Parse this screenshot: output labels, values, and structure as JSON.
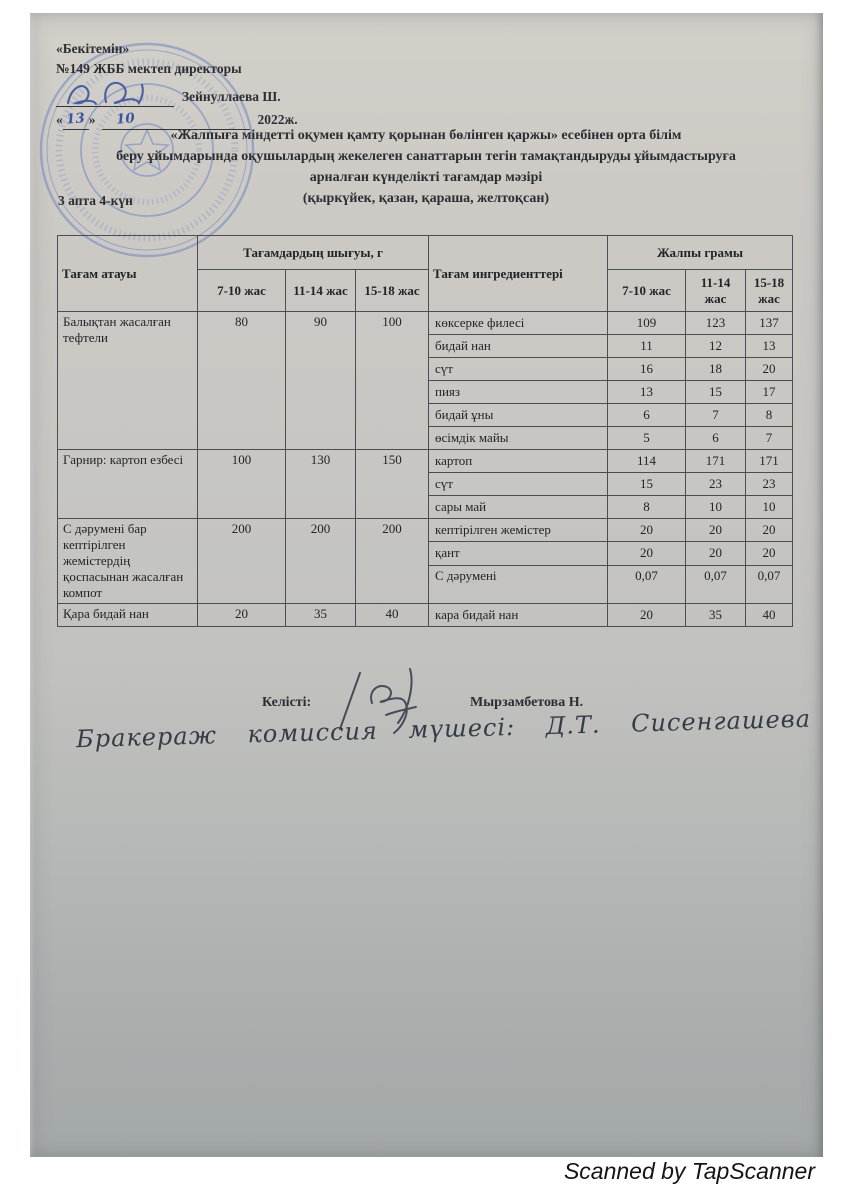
{
  "approval": {
    "line1": "«Бекітемін»",
    "line2": "№149 ЖББ мектеп директоры",
    "director": "Зейнуллаева Ш.",
    "quote_open": "«",
    "quote_close": "»",
    "date_day": "13",
    "date_month": "10",
    "date_year": "2022ж."
  },
  "title": {
    "lines": [
      "«Жалпыға міндетті оқумен қамту қорынан бөлінген қаржы» есебінен орта білім",
      "беру ұйымдарында оқушылардың жекелеген санаттарын тегін тамақтандыруды ұйымдастыруға",
      "арналған күнделікті тағамдар мәзірі",
      "(қыркүйек, қазан, қараша, желтоқсан)"
    ],
    "week_day": "3 апта 4-күн"
  },
  "table": {
    "headers": {
      "dish": "Тағам атауы",
      "output": "Тағамдардың шығуы, г",
      "ingredients": "Тағам ингредиенттері",
      "total": "Жалпы грамы",
      "age_groups": [
        "7-10 жас",
        "11-14 жас",
        "15-18 жас"
      ]
    },
    "groups": [
      {
        "dish": "Балықтан жасалған тефтели",
        "output": [
          "80",
          "90",
          "100"
        ],
        "ingredients": [
          {
            "name": "көксерке филесі",
            "grams": [
              "109",
              "123",
              "137"
            ]
          },
          {
            "name": "бидай нан",
            "grams": [
              "11",
              "12",
              "13"
            ]
          },
          {
            "name": "сүт",
            "grams": [
              "16",
              "18",
              "20"
            ]
          },
          {
            "name": "пияз",
            "grams": [
              "13",
              "15",
              "17"
            ]
          },
          {
            "name": "бидай ұны",
            "grams": [
              "6",
              "7",
              "8"
            ]
          },
          {
            "name": "өсімдік майы",
            "grams": [
              "5",
              "6",
              "7"
            ]
          }
        ]
      },
      {
        "dish": "Гарнир: картоп езбесі",
        "output": [
          "100",
          "130",
          "150"
        ],
        "ingredients": [
          {
            "name": "картоп",
            "grams": [
              "114",
              "171",
              "171"
            ]
          },
          {
            "name": "сүт",
            "grams": [
              "15",
              "23",
              "23"
            ]
          },
          {
            "name": "сары май",
            "grams": [
              "8",
              "10",
              "10"
            ]
          }
        ]
      },
      {
        "dish": "С дәрумені бар кептірілген жемістердің қоспасынан жасалған компот",
        "output": [
          "200",
          "200",
          "200"
        ],
        "ingredients": [
          {
            "name": "кептірілген жемістер",
            "grams": [
              "20",
              "20",
              "20"
            ]
          },
          {
            "name": "қант",
            "grams": [
              "20",
              "20",
              "20"
            ]
          },
          {
            "name": "С дәрумені",
            "grams": [
              "0,07",
              "0,07",
              "0,07"
            ]
          }
        ]
      },
      {
        "dish": "Қара  бидай нан",
        "output": [
          "20",
          "35",
          "40"
        ],
        "ingredients": [
          {
            "name": "кара бидай нан",
            "grams": [
              "20",
              "35",
              "40"
            ]
          }
        ]
      }
    ]
  },
  "signatures": {
    "agreed_label": "Келісті:",
    "agreed_name": "Мырзамбетова Н.",
    "handwritten_note": "Бракераж комиссия мүшесі: Д.Т. Сисенгашева"
  },
  "footer": {
    "scanner_text": "Scanned by TapScanner"
  }
}
